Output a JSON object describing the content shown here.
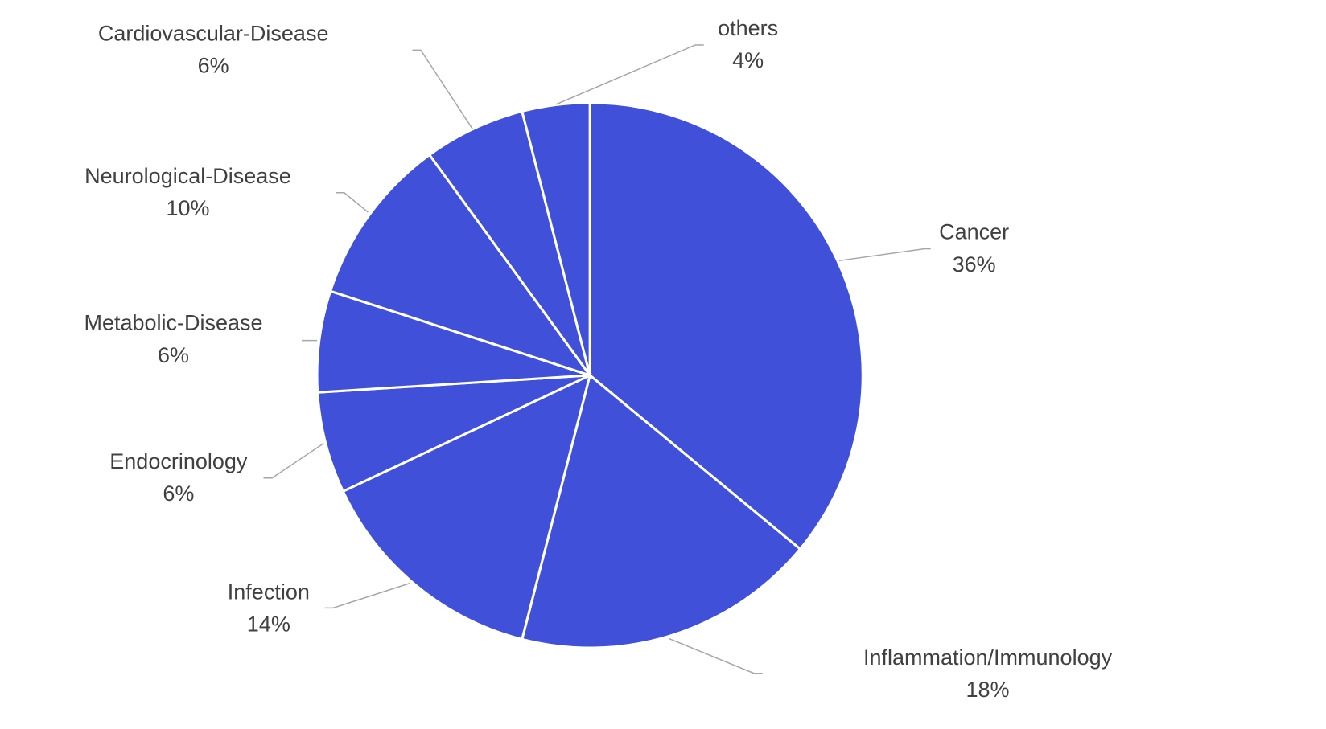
{
  "chart_data": {
    "type": "pie",
    "categories": [
      "Cancer",
      "Inflammation/Immunology",
      "Infection",
      "Endocrinology",
      "Metabolic-Disease",
      "Neurological-Disease",
      "Cardiovascular-Disease",
      "others"
    ],
    "values": [
      36,
      18,
      14,
      6,
      6,
      10,
      6,
      4
    ],
    "value_labels": [
      "36%",
      "18%",
      "14%",
      "6%",
      "6%",
      "10%",
      "6%",
      "4%"
    ],
    "color": "#4150d8"
  }
}
